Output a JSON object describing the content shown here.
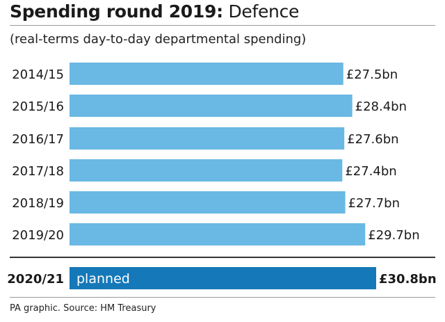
{
  "title_bold": "Spending round 2019:",
  "title_rest": " Defence",
  "subtitle": "(real-terms day-to-day departmental spending)",
  "source": "PA graphic. Source: HM Treasury",
  "colors": {
    "actual_bar": "#6ab8e4",
    "planned_bar": "#1578b8",
    "planned_text": "#ffffff",
    "text": "#1a1a1a"
  },
  "chart_data": {
    "type": "bar",
    "orientation": "horizontal",
    "categories": [
      "2014/15",
      "2015/16",
      "2016/17",
      "2017/18",
      "2018/19",
      "2019/20",
      "2020/21"
    ],
    "values": [
      27.5,
      28.4,
      27.6,
      27.4,
      27.7,
      29.7,
      30.8
    ],
    "value_labels": [
      "£27.5bn",
      "£28.4bn",
      "£27.6bn",
      "£27.4bn",
      "£27.7bn",
      "£29.7bn",
      "£30.8bn"
    ],
    "highlight_category": "2020/21",
    "highlight_bar_label": "planned",
    "xlim": [
      0,
      30.8
    ]
  }
}
